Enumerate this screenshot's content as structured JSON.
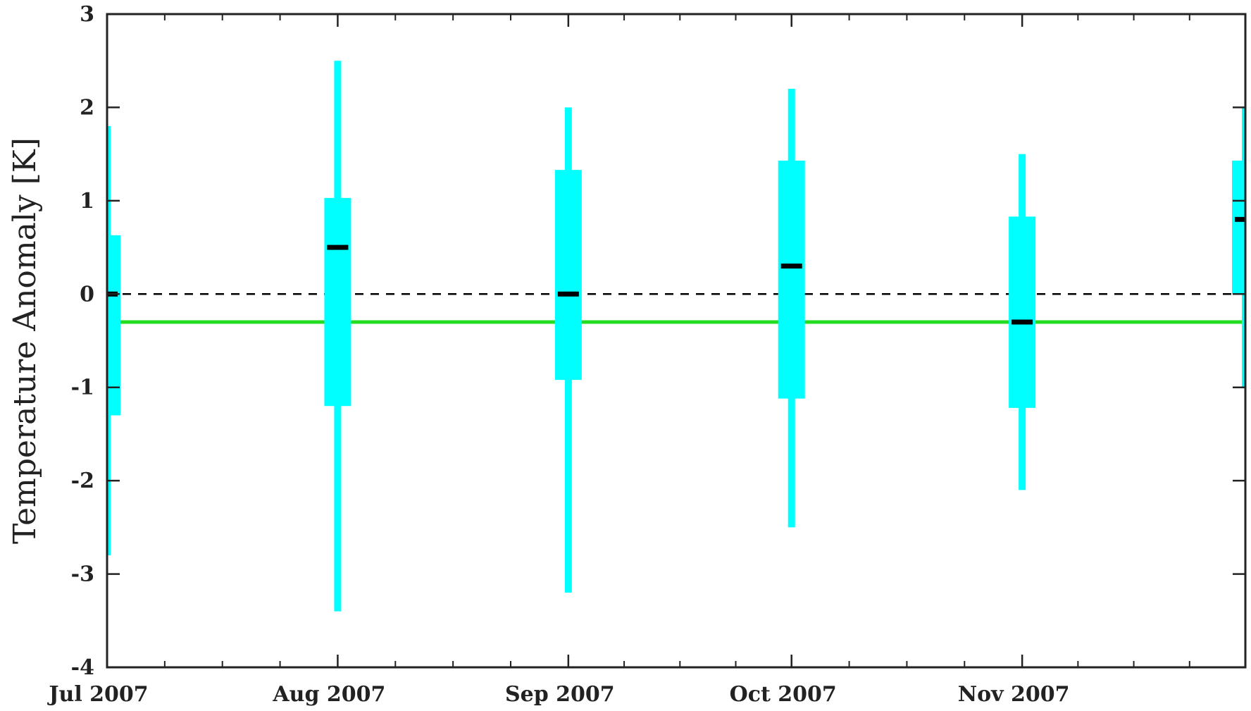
{
  "chart_data": {
    "type": "box",
    "ylabel": "Temperature Anomaly [K]",
    "xlabel": "",
    "ylim": [
      -4,
      3
    ],
    "yticks": [
      -4,
      -3,
      -2,
      -1,
      0,
      1,
      2,
      3
    ],
    "xlim": [
      "2007-07-01",
      "2007-12-01"
    ],
    "xtick_labels": [
      "Jul 2007",
      "Aug 2007",
      "Sep 2007",
      "Oct 2007",
      "Nov 2007"
    ],
    "xtick_dates": [
      "2007-07-01",
      "2007-08-01",
      "2007-09-01",
      "2007-10-01",
      "2007-11-01"
    ],
    "minor_xticks_per_interval": 3,
    "series": [
      {
        "boxes": [
          {
            "date": "2007-07-01",
            "whisker_low": -2.8,
            "box_low": -1.3,
            "median": 0.0,
            "box_high": 0.63,
            "whisker_high": 1.8
          },
          {
            "date": "2007-08-01",
            "whisker_low": -3.4,
            "box_low": -1.2,
            "median": 0.5,
            "box_high": 1.03,
            "whisker_high": 2.5
          },
          {
            "date": "2007-09-01",
            "whisker_low": -3.2,
            "box_low": -0.92,
            "median": 0.0,
            "box_high": 1.33,
            "whisker_high": 2.0
          },
          {
            "date": "2007-10-01",
            "whisker_low": -2.5,
            "box_low": -1.12,
            "median": 0.3,
            "box_high": 1.43,
            "whisker_high": 2.2
          },
          {
            "date": "2007-11-01",
            "whisker_low": -2.1,
            "box_low": -1.22,
            "median": -0.3,
            "box_high": 0.83,
            "whisker_high": 1.5
          },
          {
            "date": "2007-12-01",
            "whisker_low": -1.0,
            "box_low": 0.0,
            "median": 0.8,
            "box_high": 1.43,
            "whisker_high": 2.0
          }
        ]
      }
    ],
    "reference_lines": [
      {
        "y": 0.0,
        "style": "dashed",
        "color": "#000000"
      },
      {
        "y": -0.3,
        "style": "solid",
        "color": "#22dd22"
      }
    ],
    "colors": {
      "box": "#00ffff",
      "median": "#000000",
      "axis": "#222222"
    },
    "grid": false,
    "legend": "none"
  }
}
